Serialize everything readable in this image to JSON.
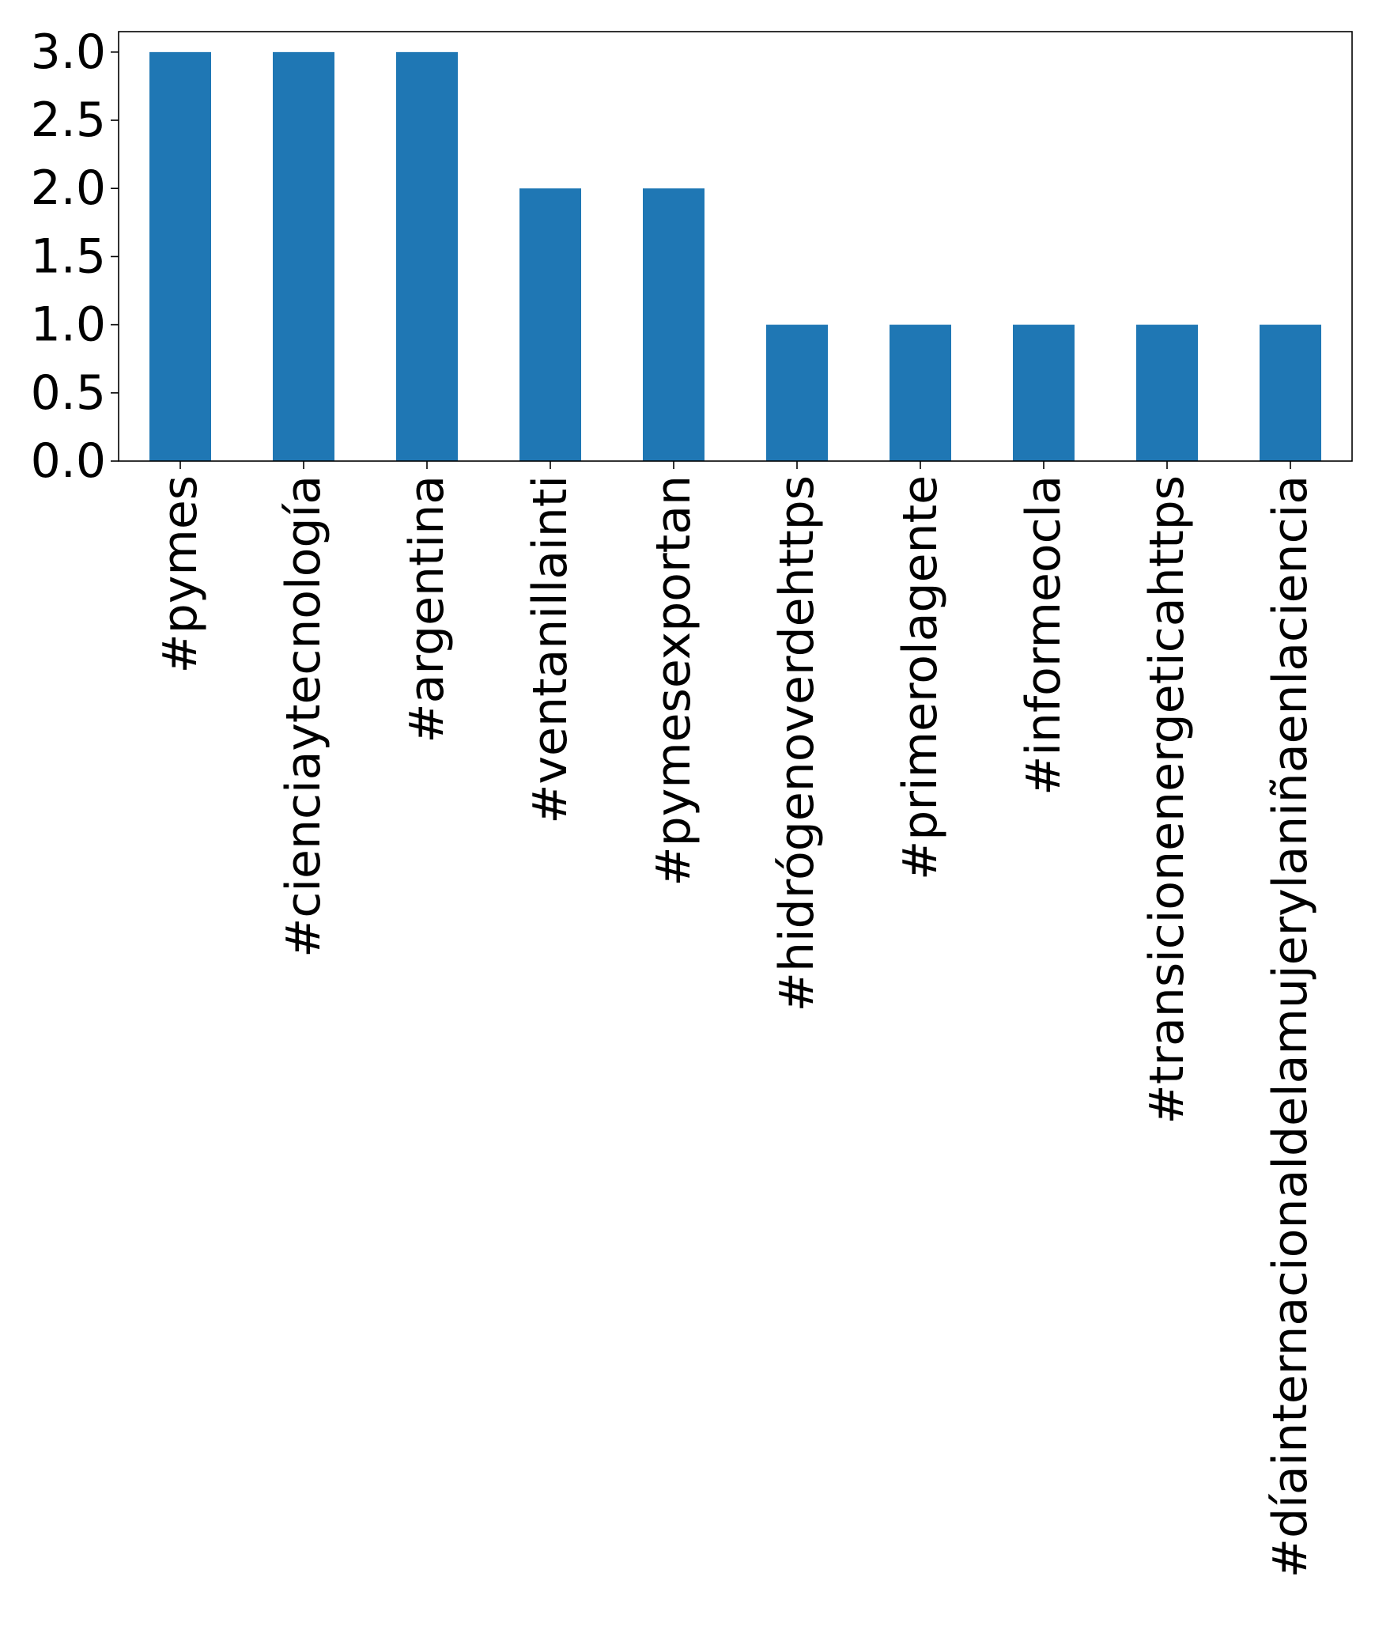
{
  "chart_data": {
    "type": "bar",
    "categories": [
      "#pymes",
      "#cienciaytecnología",
      "#argentina",
      "#ventanillainti",
      "#pymesexportan",
      "#hidrógenoverdehttps",
      "#primerolagente",
      "#informeocla",
      "#transicionenergeticahttps",
      "#díainternacionaldelamujerylaniñaenlaciencia"
    ],
    "values": [
      3,
      3,
      3,
      2,
      2,
      1,
      1,
      1,
      1,
      1
    ],
    "yticks": [
      "0.0",
      "0.5",
      "1.0",
      "1.5",
      "2.0",
      "2.5",
      "3.0"
    ],
    "ylim": [
      0,
      3.15
    ],
    "title": "",
    "xlabel": "",
    "ylabel": "",
    "bar_color": "#1f77b4",
    "grid": false,
    "legend": "none"
  }
}
